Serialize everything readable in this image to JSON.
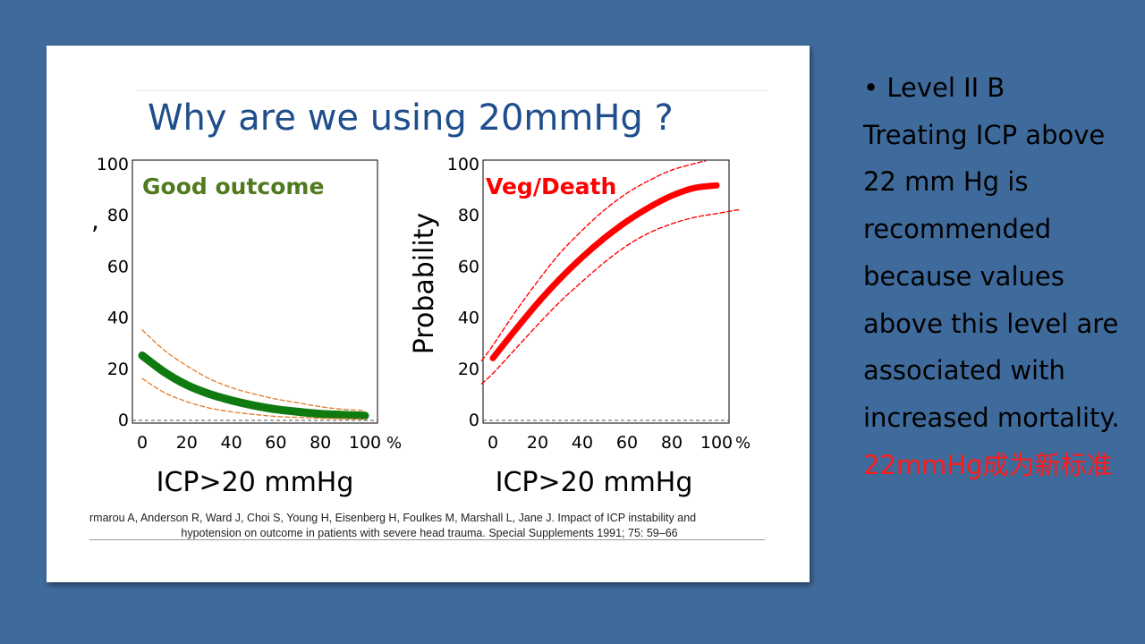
{
  "slide": {
    "title": "Why are we using 20mmHg ?",
    "citation_line1": "rmarou A, Anderson R, Ward J, Choi S, Young H, Eisenberg H, Foulkes M, Marshall L, Jane J. Impact of ICP instability and",
    "citation_line2": "hypotension on outcome in patients with severe head trauma. Special Supplements 1991; 75: 59–66"
  },
  "chart_data": [
    {
      "type": "line",
      "title": "Good outcome",
      "xlabel": "ICP>20 mmHg",
      "ylabel": "",
      "xlim": [
        0,
        100
      ],
      "ylim": [
        0,
        100
      ],
      "x_ticks": [
        "0",
        "20",
        "40",
        "60",
        "80",
        "100"
      ],
      "x_unit": "%",
      "y_ticks": [
        "0",
        "20",
        "40",
        "60",
        "80",
        "100"
      ],
      "series": [
        {
          "name": "estimate",
          "color": "#0f7a0f",
          "x": [
            0,
            10,
            20,
            30,
            40,
            50,
            60,
            70,
            80,
            90,
            100
          ],
          "values": [
            25,
            18.5,
            13.5,
            10,
            7.5,
            5.5,
            4,
            3,
            2.2,
            1.8,
            1.5
          ]
        },
        {
          "name": "upper CI",
          "color": "#e07b2a",
          "x": [
            0,
            10,
            20,
            30,
            40,
            50,
            60,
            70,
            80,
            90,
            100
          ],
          "values": [
            35,
            27,
            21,
            16,
            12.5,
            10,
            8,
            6.5,
            5,
            4,
            3.5
          ]
        },
        {
          "name": "lower CI",
          "color": "#e07b2a",
          "x": [
            0,
            10,
            20,
            30,
            40,
            50,
            60,
            70,
            80,
            90,
            100
          ],
          "values": [
            16,
            10.5,
            7,
            4.5,
            3,
            2,
            1.2,
            0.8,
            0.5,
            0.3,
            0.2
          ]
        }
      ]
    },
    {
      "type": "line",
      "title": "Veg/Death",
      "xlabel": "ICP>20 mmHg",
      "ylabel": "Probability",
      "xlim": [
        0,
        100
      ],
      "ylim": [
        0,
        100
      ],
      "x_ticks": [
        "0",
        "20",
        "40",
        "60",
        "80",
        "100"
      ],
      "x_unit": "%",
      "y_ticks": [
        "0",
        "20",
        "40",
        "60",
        "80",
        "100"
      ],
      "series": [
        {
          "name": "estimate",
          "color": "#ff0000",
          "x": [
            0,
            10,
            20,
            30,
            40,
            50,
            60,
            70,
            80,
            90,
            100
          ],
          "values": [
            24,
            35,
            45.5,
            55,
            63.5,
            71,
            77.5,
            83,
            87.5,
            90.5,
            91.5
          ]
        },
        {
          "name": "upper CI",
          "color": "#ff0000",
          "x": [
            -5,
            0,
            10,
            20,
            30,
            40,
            50,
            60,
            70,
            80,
            90,
            95
          ],
          "values": [
            23,
            29,
            42,
            54,
            65,
            74,
            82,
            88.5,
            93.5,
            97.5,
            100,
            101
          ]
        },
        {
          "name": "lower CI",
          "color": "#ff0000",
          "x": [
            -5,
            0,
            10,
            20,
            30,
            40,
            50,
            60,
            70,
            80,
            90,
            100,
            110
          ],
          "values": [
            14,
            18,
            27.5,
            37,
            46,
            54,
            61.5,
            68,
            73,
            76.5,
            79,
            80.5,
            82
          ]
        }
      ]
    }
  ],
  "notes": {
    "bullet": "•",
    "line1": "Level II B",
    "body": "Treating ICP above 22 mm Hg is recommended because values above this level are associated with increased mortality.",
    "highlight": "22mmHg成为新标准",
    "highlight_color": "#ff1a1a"
  }
}
